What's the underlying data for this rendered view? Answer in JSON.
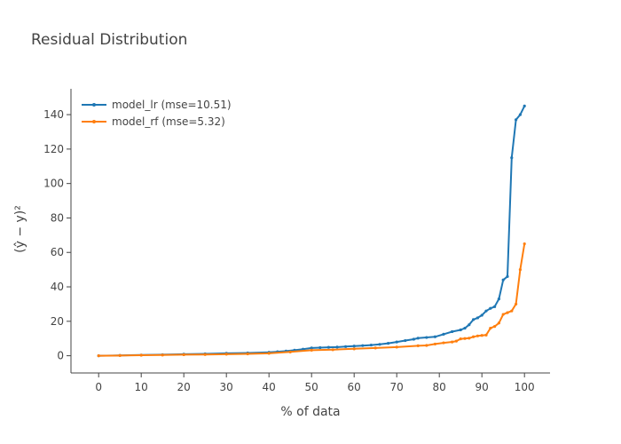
{
  "chart_data": {
    "type": "line",
    "title": "Residual Distribution",
    "xlabel": "% of data",
    "ylabel": "(ŷ − y)²",
    "xlim": [
      -6.5,
      106
    ],
    "ylim": [
      -10,
      155
    ],
    "x_ticks": [
      0,
      10,
      20,
      30,
      40,
      50,
      60,
      70,
      80,
      90,
      100
    ],
    "y_ticks": [
      0,
      20,
      40,
      60,
      80,
      100,
      120,
      140
    ],
    "grid": false,
    "legend_position": "top-left",
    "series": [
      {
        "name": "model_lr (mse=10.51)",
        "color": "#1f77b4",
        "x": [
          0,
          5,
          10,
          15,
          20,
          25,
          30,
          35,
          40,
          42,
          44,
          46,
          48,
          50,
          52,
          54,
          56,
          58,
          60,
          62,
          64,
          66,
          68,
          70,
          72,
          74,
          75,
          77,
          79,
          81,
          83,
          85,
          86,
          87,
          88,
          89,
          90,
          91,
          92,
          93,
          94,
          95,
          96,
          97,
          98,
          99,
          100
        ],
        "values": [
          0,
          0.2,
          0.4,
          0.6,
          0.9,
          1.1,
          1.4,
          1.6,
          2.0,
          2.3,
          2.7,
          3.2,
          3.8,
          4.5,
          4.7,
          4.9,
          5.0,
          5.3,
          5.6,
          5.9,
          6.2,
          6.6,
          7.2,
          8.0,
          8.8,
          9.6,
          10.2,
          10.6,
          11.0,
          12.5,
          14.0,
          15.0,
          16.0,
          18.0,
          21.0,
          22.0,
          23.5,
          26.0,
          27.5,
          28.5,
          33.0,
          44.0,
          46.0,
          115.0,
          137.0,
          140.0,
          145.0
        ]
      },
      {
        "name": "model_rf (mse=5.32)",
        "color": "#ff7f0e",
        "x": [
          0,
          5,
          10,
          15,
          20,
          25,
          30,
          35,
          40,
          45,
          50,
          55,
          60,
          65,
          70,
          75,
          77,
          79,
          81,
          83,
          84,
          85,
          86,
          87,
          88,
          89,
          90,
          91,
          92,
          93,
          94,
          95,
          96,
          97,
          98,
          99,
          100
        ],
        "values": [
          0,
          0.1,
          0.3,
          0.4,
          0.6,
          0.7,
          0.9,
          1.1,
          1.4,
          2.2,
          3.2,
          3.5,
          4.0,
          4.5,
          5.0,
          5.8,
          6.0,
          6.8,
          7.5,
          8.0,
          8.5,
          9.8,
          10.0,
          10.2,
          11.0,
          11.5,
          11.8,
          12.0,
          16.0,
          17.0,
          19.0,
          24.0,
          25.0,
          26.0,
          30.0,
          50.0,
          65.0
        ]
      }
    ]
  }
}
